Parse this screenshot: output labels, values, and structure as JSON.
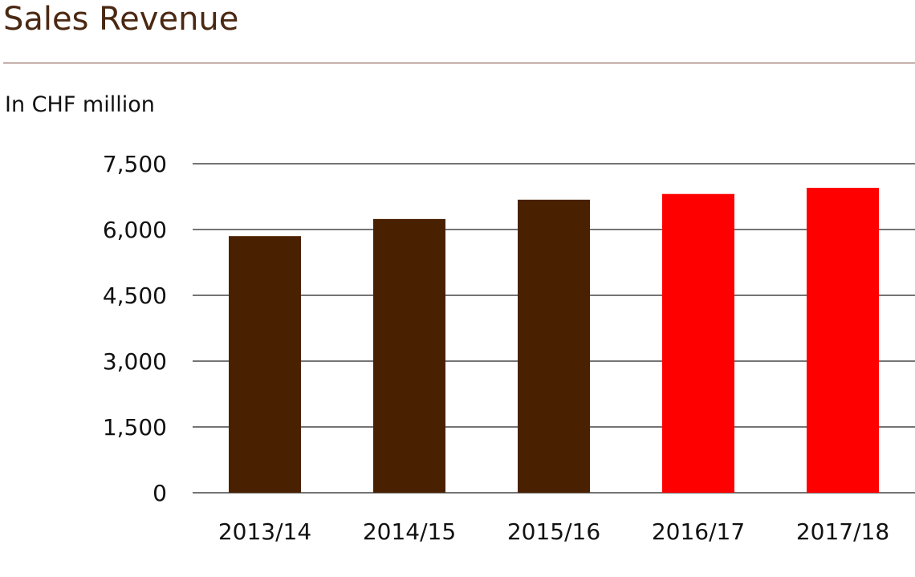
{
  "header": {
    "title": "Sales Revenue",
    "unit_label": "In CHF million"
  },
  "chart_data": {
    "type": "bar",
    "categories": [
      "2013/14",
      "2014/15",
      "2015/16",
      "2016/17",
      "2017/18"
    ],
    "values": [
      5850,
      6240,
      6680,
      6810,
      6950
    ],
    "bar_colors": [
      "#4a2100",
      "#4a2100",
      "#4a2100",
      "#ff0000",
      "#ff0000"
    ],
    "ylim": [
      0,
      7500
    ],
    "yticks": [
      0,
      1500,
      3000,
      4500,
      6000,
      7500
    ],
    "ytick_labels": [
      "0",
      "1,500",
      "3,000",
      "4,500",
      "6,000",
      "7,500"
    ],
    "grid": true,
    "legend": "none",
    "colors": {
      "title": "#4a2812",
      "rule": "#7a4a3a",
      "grid": "#222222"
    }
  }
}
